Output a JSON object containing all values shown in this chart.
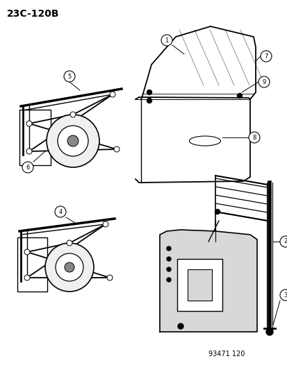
{
  "title": "23C-120B",
  "footer": "93471 120",
  "bg_color": "#ffffff",
  "title_fontsize": 10,
  "footer_fontsize": 7
}
